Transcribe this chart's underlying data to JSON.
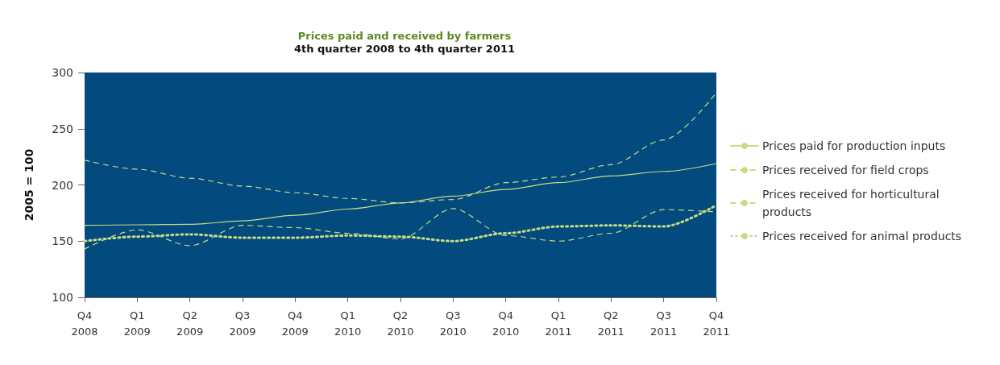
{
  "chart_data": {
    "type": "line",
    "title": "Prices paid and received by farmers",
    "subtitle": "4th quarter 2008 to 4th quarter 2011",
    "ylabel": "2005 = 100",
    "categories": [
      "Q4\n2008",
      "Q1\n2009",
      "Q2\n2009",
      "Q3\n2009",
      "Q4\n2009",
      "Q1\n2010",
      "Q2\n2010",
      "Q3\n2010",
      "Q4\n2010",
      "Q1\n2011",
      "Q2\n2011",
      "Q3\n2011",
      "Q4\n2011"
    ],
    "series": [
      {
        "name": "Prices paid for production inputs",
        "color": "#c5dc84",
        "line_style": "solid",
        "values": [
          164,
          164.5,
          165,
          168,
          173,
          178.5,
          184,
          190,
          196,
          202,
          208,
          212,
          219
        ]
      },
      {
        "name": "Prices received for field crops",
        "color": "#c5dc84",
        "line_style": "dashed",
        "values": [
          222,
          214,
          206,
          199,
          193,
          188,
          184,
          187,
          202,
          207,
          218,
          240,
          282
        ]
      },
      {
        "name": "Prices received for horticultural products",
        "color": "#c5dc84",
        "line_style": "dashed",
        "values": [
          143,
          160,
          146,
          164,
          162,
          157,
          152,
          179,
          155,
          150,
          157,
          178,
          176
        ]
      },
      {
        "name": "Prices received for animal products",
        "color": "#c5dc84",
        "line_style": "dotted",
        "values": [
          150,
          154,
          156,
          153,
          153,
          155,
          154,
          150,
          157,
          163,
          164,
          163,
          182
        ]
      }
    ],
    "ylim": [
      100,
      300
    ],
    "yticks": [
      100,
      150,
      200,
      250,
      300
    ],
    "grid": false,
    "legend": "right",
    "marker": "none"
  }
}
